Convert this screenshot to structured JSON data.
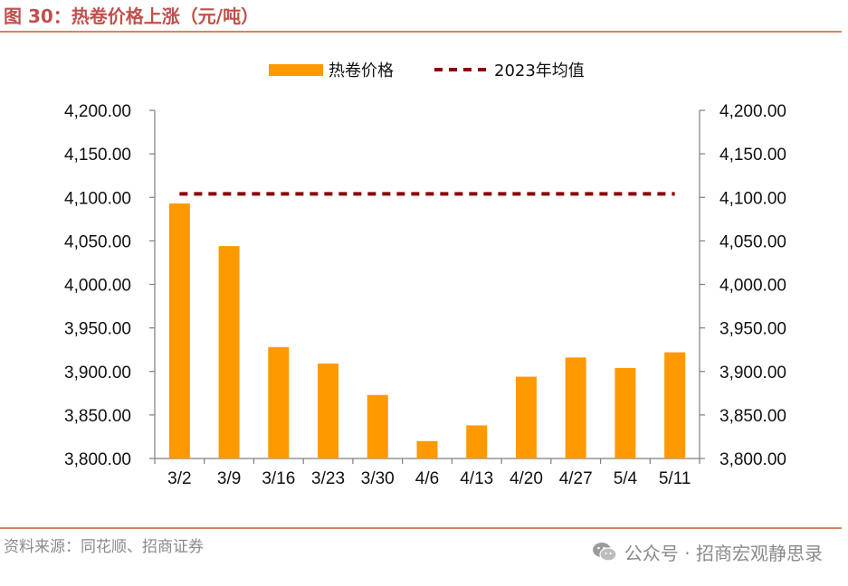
{
  "header": {
    "title": "图 30：热卷价格上涨（元/吨）"
  },
  "footer": {
    "source": "资料来源：同花顺、招商证券",
    "watermark": "公众号 · 招商宏观静思录",
    "watermark_icon": "wechat-icon"
  },
  "chart_data": {
    "type": "bar",
    "categories": [
      "3/2",
      "3/9",
      "3/16",
      "3/23",
      "3/30",
      "4/6",
      "4/13",
      "4/20",
      "4/27",
      "5/4",
      "5/11"
    ],
    "series": [
      {
        "name": "热卷价格",
        "type": "bar",
        "color": "#ff9900",
        "values": [
          4093,
          4044,
          3928,
          3909,
          3873,
          3820,
          3838,
          3894,
          3916,
          3904,
          3922
        ]
      },
      {
        "name": "2023年均值",
        "type": "line",
        "style": "dashed",
        "color": "#8b0000",
        "values": [
          4104,
          4104,
          4104,
          4104,
          4104,
          4104,
          4104,
          4104,
          4104,
          4104,
          4104
        ]
      }
    ],
    "ylim": [
      3800,
      4200
    ],
    "yticks": [
      "3,800.00",
      "3,850.00",
      "3,900.00",
      "3,950.00",
      "4,000.00",
      "4,050.00",
      "4,100.00",
      "4,150.00",
      "4,200.00"
    ],
    "ytick_values": [
      3800,
      3850,
      3900,
      3950,
      4000,
      4050,
      4100,
      4150,
      4200
    ],
    "secondary_yaxis": true,
    "legend_position": "top-center",
    "grid": false
  }
}
